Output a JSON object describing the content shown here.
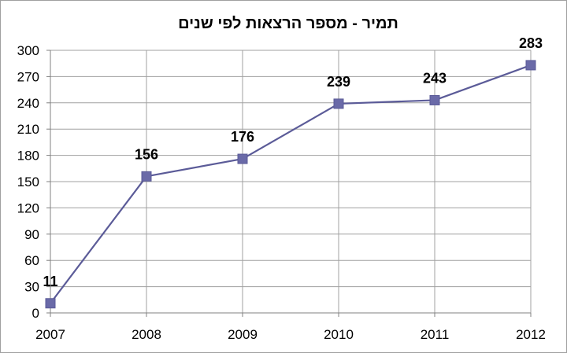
{
  "chart_data": {
    "type": "line",
    "title": "תמיר - מספר הרצאות לפי שנים",
    "xlabel": "",
    "ylabel": "",
    "categories": [
      "2007",
      "2008",
      "2009",
      "2010",
      "2011",
      "2012"
    ],
    "series": [
      {
        "values": [
          11,
          156,
          176,
          239,
          243,
          283
        ],
        "color": "#5b5b98",
        "marker": "square"
      }
    ],
    "data_labels": [
      "11",
      "156",
      "176",
      "239",
      "243",
      "283"
    ],
    "ylim": [
      0,
      300
    ],
    "yticks": [
      0,
      30,
      60,
      90,
      120,
      150,
      180,
      210,
      240,
      270,
      300
    ],
    "ytick_labels": [
      "0",
      "30",
      "60",
      "90",
      "120",
      "150",
      "180",
      "210",
      "240",
      "270",
      "300"
    ],
    "grid": true,
    "legend": "none",
    "colors": {
      "line": "#5b5b98",
      "marker": "#6a6aa8",
      "grid": "#a0a0a0",
      "axis": "#808080"
    }
  }
}
